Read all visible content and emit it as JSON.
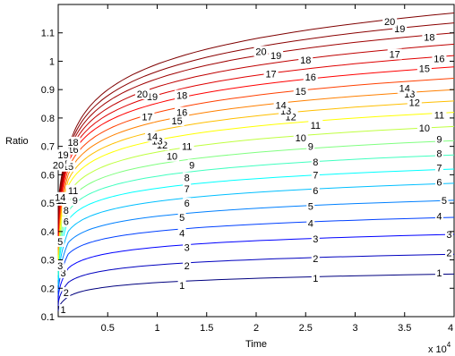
{
  "chart_data": {
    "type": "line",
    "title": "",
    "xlabel": "Time",
    "ylabel": "Ratio",
    "x_exponent_label": "x 10",
    "x_exponent_power": "4",
    "xlim": [
      0,
      40000
    ],
    "ylim": [
      0.1,
      1.2
    ],
    "x_ticks": [
      5000,
      10000,
      15000,
      20000,
      25000,
      30000,
      35000,
      40000
    ],
    "x_tick_labels": [
      "0.5",
      "1",
      "1.5",
      "2",
      "2.5",
      "3",
      "3.5",
      "4"
    ],
    "y_ticks": [
      0.1,
      0.2,
      0.3,
      0.4,
      0.5,
      0.6,
      0.7,
      0.8,
      0.9,
      1.0,
      1.1
    ],
    "y_tick_labels": [
      "0.1",
      "0.2",
      "0.3",
      "0.4",
      "0.5",
      "0.6",
      "0.7",
      "0.8",
      "0.9",
      "1",
      "1.1"
    ],
    "grid": false,
    "legend": "none",
    "colormap": [
      "#00007f",
      "#0000bf",
      "#0000ff",
      "#0040ff",
      "#0080ff",
      "#00bfff",
      "#00ffff",
      "#40ffbf",
      "#80ff80",
      "#bfff40",
      "#ffff00",
      "#ffbf00",
      "#ff8000",
      "#ff4000",
      "#ff0000",
      "#df0000",
      "#bf0000",
      "#9f0000",
      "#8a0000",
      "#7f0000"
    ],
    "series": [
      {
        "name": "1",
        "y_at_1000": 0.17,
        "y_at_40000": 0.25
      },
      {
        "name": "2",
        "y_at_1000": 0.22,
        "y_at_40000": 0.32
      },
      {
        "name": "3",
        "y_at_1000": 0.27,
        "y_at_40000": 0.39
      },
      {
        "name": "4",
        "y_at_1000": 0.32,
        "y_at_40000": 0.45
      },
      {
        "name": "5",
        "y_at_1000": 0.36,
        "y_at_40000": 0.51
      },
      {
        "name": "6",
        "y_at_1000": 0.4,
        "y_at_40000": 0.57
      },
      {
        "name": "7",
        "y_at_1000": 0.44,
        "y_at_40000": 0.62
      },
      {
        "name": "8",
        "y_at_1000": 0.47,
        "y_at_40000": 0.67
      },
      {
        "name": "9",
        "y_at_1000": 0.5,
        "y_at_40000": 0.72
      },
      {
        "name": "10",
        "y_at_1000": 0.53,
        "y_at_40000": 0.77
      },
      {
        "name": "11",
        "y_at_1000": 0.56,
        "y_at_40000": 0.82
      },
      {
        "name": "12",
        "y_at_1000": 0.58,
        "y_at_40000": 0.86
      },
      {
        "name": "13",
        "y_at_1000": 0.6,
        "y_at_40000": 0.9
      },
      {
        "name": "14",
        "y_at_1000": 0.62,
        "y_at_40000": 0.94
      },
      {
        "name": "15",
        "y_at_1000": 0.64,
        "y_at_40000": 0.98
      },
      {
        "name": "16",
        "y_at_1000": 0.65,
        "y_at_40000": 1.02
      },
      {
        "name": "17",
        "y_at_1000": 0.66,
        "y_at_40000": 1.06
      },
      {
        "name": "18",
        "y_at_1000": 0.67,
        "y_at_40000": 1.1
      },
      {
        "name": "19",
        "y_at_1000": 0.68,
        "y_at_40000": 1.135
      },
      {
        "name": "20",
        "y_at_1000": 0.69,
        "y_at_40000": 1.17
      }
    ],
    "contour_labels": [
      {
        "text": "1",
        "x": 500,
        "y": 0.125
      },
      {
        "text": "1",
        "x": 12500,
        "y": 0.21
      },
      {
        "text": "1",
        "x": 26000,
        "y": 0.235
      },
      {
        "text": "1",
        "x": 38500,
        "y": 0.255
      },
      {
        "text": "2",
        "x": 800,
        "y": 0.185
      },
      {
        "text": "2",
        "x": 13000,
        "y": 0.28
      },
      {
        "text": "2",
        "x": 26000,
        "y": 0.305
      },
      {
        "text": "2",
        "x": 39500,
        "y": 0.325
      },
      {
        "text": "3",
        "x": 500,
        "y": 0.255
      },
      {
        "text": "3",
        "x": 13000,
        "y": 0.345
      },
      {
        "text": "3",
        "x": 26000,
        "y": 0.375
      },
      {
        "text": "3",
        "x": 39500,
        "y": 0.39
      },
      {
        "text": "3",
        "x": 200,
        "y": 0.28
      },
      {
        "text": "4",
        "x": 12500,
        "y": 0.395
      },
      {
        "text": "4",
        "x": 25500,
        "y": 0.43
      },
      {
        "text": "4",
        "x": 38500,
        "y": 0.455
      },
      {
        "text": "5",
        "x": 200,
        "y": 0.365
      },
      {
        "text": "5",
        "x": 12500,
        "y": 0.45
      },
      {
        "text": "5",
        "x": 25500,
        "y": 0.49
      },
      {
        "text": "5",
        "x": 39000,
        "y": 0.51
      },
      {
        "text": "6",
        "x": 800,
        "y": 0.435
      },
      {
        "text": "6",
        "x": 13000,
        "y": 0.5
      },
      {
        "text": "6",
        "x": 26000,
        "y": 0.545
      },
      {
        "text": "6",
        "x": 38500,
        "y": 0.575
      },
      {
        "text": "7",
        "x": 13000,
        "y": 0.55
      },
      {
        "text": "7",
        "x": 26000,
        "y": 0.6
      },
      {
        "text": "7",
        "x": 38500,
        "y": 0.625
      },
      {
        "text": "8",
        "x": 800,
        "y": 0.475
      },
      {
        "text": "8",
        "x": 13000,
        "y": 0.59
      },
      {
        "text": "8",
        "x": 26000,
        "y": 0.645
      },
      {
        "text": "8",
        "x": 38500,
        "y": 0.675
      },
      {
        "text": "9",
        "x": 13500,
        "y": 0.635
      },
      {
        "text": "9",
        "x": 25500,
        "y": 0.7
      },
      {
        "text": "9",
        "x": 38500,
        "y": 0.725
      },
      {
        "text": "10",
        "x": 500,
        "y": 0.515
      },
      {
        "text": "10",
        "x": 11500,
        "y": 0.665
      },
      {
        "text": "10",
        "x": 24500,
        "y": 0.73
      },
      {
        "text": "10",
        "x": 37000,
        "y": 0.765
      },
      {
        "text": "11",
        "x": 1500,
        "y": 0.545
      },
      {
        "text": "11",
        "x": 13000,
        "y": 0.7
      },
      {
        "text": "11",
        "x": 26000,
        "y": 0.775
      },
      {
        "text": "11",
        "x": 38500,
        "y": 0.81
      },
      {
        "text": "12",
        "x": 10500,
        "y": 0.705
      },
      {
        "text": "12",
        "x": 23500,
        "y": 0.805
      },
      {
        "text": "12",
        "x": 36000,
        "y": 0.855
      },
      {
        "text": "12",
        "x": 300,
        "y": 0.51
      },
      {
        "text": "9",
        "x": 1700,
        "y": 0.51
      },
      {
        "text": "13",
        "x": 10000,
        "y": 0.72
      },
      {
        "text": "13",
        "x": 23000,
        "y": 0.825
      },
      {
        "text": "13",
        "x": 35500,
        "y": 0.885
      },
      {
        "text": "14",
        "x": 9500,
        "y": 0.735
      },
      {
        "text": "14",
        "x": 22500,
        "y": 0.845
      },
      {
        "text": "14",
        "x": 35000,
        "y": 0.905
      },
      {
        "text": "14",
        "x": 200,
        "y": 0.52
      },
      {
        "text": "15",
        "x": 12000,
        "y": 0.79
      },
      {
        "text": "15",
        "x": 24500,
        "y": 0.895
      },
      {
        "text": "15",
        "x": 37000,
        "y": 0.975
      },
      {
        "text": "15",
        "x": 1000,
        "y": 0.63
      },
      {
        "text": "16",
        "x": 12500,
        "y": 0.82
      },
      {
        "text": "16",
        "x": 25500,
        "y": 0.945
      },
      {
        "text": "16",
        "x": 38500,
        "y": 1.01
      },
      {
        "text": "16",
        "x": 1500,
        "y": 0.69
      },
      {
        "text": "17",
        "x": 9000,
        "y": 0.805
      },
      {
        "text": "17",
        "x": 21500,
        "y": 0.955
      },
      {
        "text": "17",
        "x": 34000,
        "y": 1.025
      },
      {
        "text": "17",
        "x": 500,
        "y": 0.65
      },
      {
        "text": "18",
        "x": 12500,
        "y": 0.88
      },
      {
        "text": "18",
        "x": 25000,
        "y": 1.005
      },
      {
        "text": "18",
        "x": 37500,
        "y": 1.085
      },
      {
        "text": "18",
        "x": 1500,
        "y": 0.715
      },
      {
        "text": "19",
        "x": 9500,
        "y": 0.875
      },
      {
        "text": "19",
        "x": 22000,
        "y": 1.02
      },
      {
        "text": "19",
        "x": 34500,
        "y": 1.115
      },
      {
        "text": "19",
        "x": 500,
        "y": 0.67
      },
      {
        "text": "20",
        "x": 8500,
        "y": 0.885
      },
      {
        "text": "20",
        "x": 20500,
        "y": 1.035
      },
      {
        "text": "20",
        "x": 33500,
        "y": 1.14
      },
      {
        "text": "20",
        "x": 0,
        "y": 0.635
      }
    ]
  }
}
